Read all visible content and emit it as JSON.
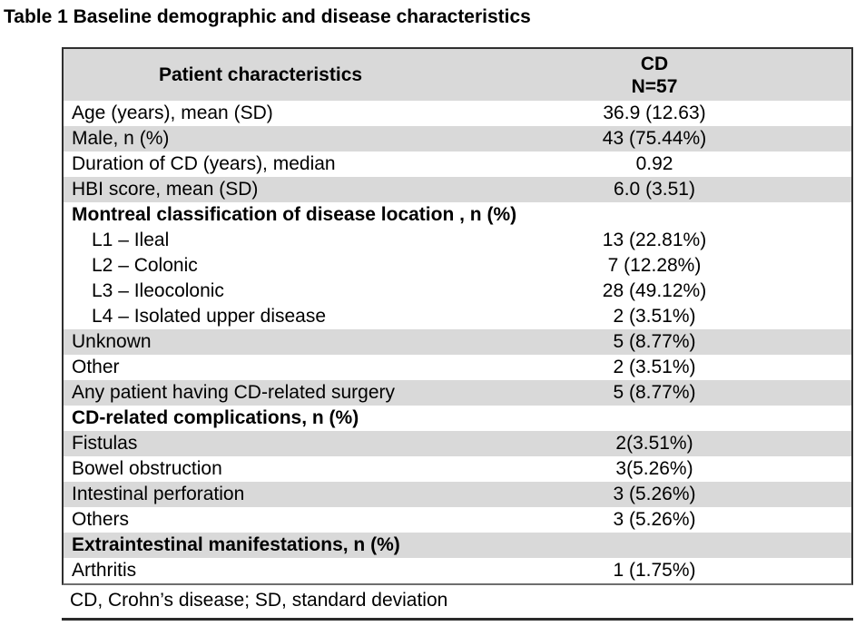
{
  "title": "Table 1 Baseline demographic and disease characteristics",
  "table": {
    "header": {
      "col1": "Patient characteristics",
      "col2_line1": "CD",
      "col2_line2": "N=57"
    },
    "rows": [
      {
        "label": "Age (years), mean (SD)",
        "value": "36.9 (12.63)",
        "shaded": false,
        "bold": false,
        "indent": false
      },
      {
        "label": "Male, n (%)",
        "value": "43 (75.44%)",
        "shaded": true,
        "bold": false,
        "indent": false
      },
      {
        "label": "Duration of CD (years), median",
        "value": "0.92",
        "shaded": false,
        "bold": false,
        "indent": false
      },
      {
        "label": "HBI score, mean (SD)",
        "value": "6.0 (3.51)",
        "shaded": true,
        "bold": false,
        "indent": false
      },
      {
        "label": "Montreal classification of disease location , n (%)",
        "value": "",
        "shaded": false,
        "bold": true,
        "indent": false
      },
      {
        "label": "L1 – Ileal",
        "value": "13 (22.81%)",
        "shaded": false,
        "bold": false,
        "indent": true
      },
      {
        "label": "L2 – Colonic",
        "value": "7 (12.28%)",
        "shaded": false,
        "bold": false,
        "indent": true
      },
      {
        "label": "L3 – Ileocolonic",
        "value": "28 (49.12%)",
        "shaded": false,
        "bold": false,
        "indent": true
      },
      {
        "label": "L4 – Isolated upper disease",
        "value": "2 (3.51%)",
        "shaded": false,
        "bold": false,
        "indent": true
      },
      {
        "label": "Unknown",
        "value": "5 (8.77%)",
        "shaded": true,
        "bold": false,
        "indent": false
      },
      {
        "label": "Other",
        "value": "2 (3.51%)",
        "shaded": false,
        "bold": false,
        "indent": false
      },
      {
        "label": "Any patient having CD-related surgery",
        "value": "5 (8.77%)",
        "shaded": true,
        "bold": false,
        "indent": false
      },
      {
        "label": "CD-related complications, n (%)",
        "value": "",
        "shaded": false,
        "bold": true,
        "indent": false
      },
      {
        "label": "Fistulas",
        "value": "2(3.51%)",
        "shaded": true,
        "bold": false,
        "indent": false
      },
      {
        "label": "Bowel obstruction",
        "value": "3(5.26%)",
        "shaded": false,
        "bold": false,
        "indent": false
      },
      {
        "label": "Intestinal perforation",
        "value": "3 (5.26%)",
        "shaded": true,
        "bold": false,
        "indent": false
      },
      {
        "label": "Others",
        "value": "3 (5.26%)",
        "shaded": false,
        "bold": false,
        "indent": false
      },
      {
        "label": "Extraintestinal manifestations, n (%)",
        "value": "",
        "shaded": true,
        "bold": true,
        "indent": false
      },
      {
        "label": "Arthritis",
        "value": "1 (1.75%)",
        "shaded": false,
        "bold": false,
        "indent": false
      }
    ],
    "footnote": "CD, Crohn’s disease; SD, standard deviation"
  },
  "colors": {
    "row_shade": "#d9d9d9",
    "border_dark": "#2f2f2f",
    "box_bottom": "#6e6e6e",
    "text": "#000000"
  }
}
